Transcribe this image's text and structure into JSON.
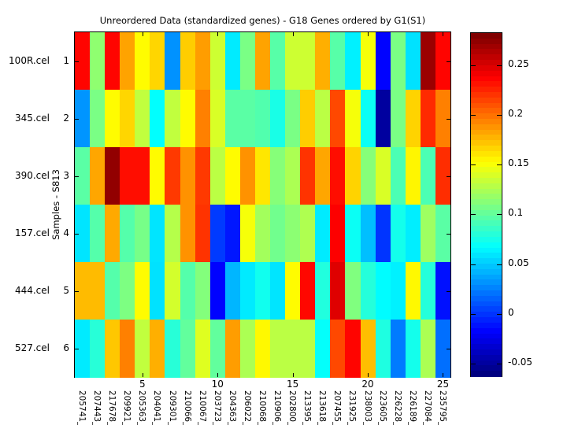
{
  "title": "Unreordered Data (standardized genes) - G18 Genes ordered by G1(S1)",
  "ylabel": "Samples - S813",
  "chart_data": {
    "type": "heatmap",
    "colormap": "jet",
    "row_labels": [
      "100R.cel",
      "345.cel",
      "390.cel",
      "157.cel",
      "444.cel",
      "527.cel"
    ],
    "row_indices": [
      "1",
      "2",
      "3",
      "4",
      "5",
      "6"
    ],
    "col_labels": [
      "205741_",
      "207443_",
      "217678_",
      "209921_",
      "205363_",
      "204041_",
      "209301_",
      "210066_",
      "210067_",
      "203723_",
      "204363_",
      "206022_",
      "210068_",
      "210906_",
      "202800_",
      "213395_",
      "213618_",
      "207455_",
      "231925_",
      "238003_",
      "223605_",
      "226228_",
      "226189_",
      "227084_",
      "235795_"
    ],
    "x_ticks": [
      5,
      10,
      15,
      20,
      25
    ],
    "vmin": -0.0627,
    "vmax": 0.2824,
    "colorbar_ticks": [
      "0.25",
      "0.2",
      "0.15",
      "0.1",
      "0.05",
      "0",
      "-0.05"
    ],
    "values": [
      [
        0.238,
        0.115,
        0.238,
        0.184,
        0.154,
        0.167,
        0.03,
        0.17,
        0.186,
        0.136,
        0.06,
        0.108,
        0.184,
        0.096,
        0.136,
        0.136,
        0.18,
        0.096,
        0.062,
        0.15,
        -0.019,
        0.108,
        0.057,
        0.273,
        0.238
      ],
      [
        0.031,
        0.108,
        0.154,
        0.167,
        0.132,
        0.067,
        0.132,
        0.154,
        0.196,
        0.14,
        0.097,
        0.097,
        0.094,
        0.075,
        0.108,
        0.17,
        0.13,
        0.215,
        0.15,
        0.07,
        -0.052,
        0.108,
        0.168,
        0.225,
        0.196
      ],
      [
        0.097,
        0.183,
        0.276,
        0.235,
        0.235,
        0.154,
        0.22,
        0.19,
        0.22,
        0.13,
        0.154,
        0.19,
        0.161,
        0.112,
        0.125,
        0.222,
        0.183,
        0.235,
        0.168,
        0.112,
        0.14,
        0.092,
        0.156,
        0.092,
        0.224
      ],
      [
        0.058,
        0.095,
        0.182,
        0.095,
        0.107,
        0.058,
        0.128,
        0.19,
        0.222,
        0.0,
        -0.012,
        0.15,
        0.122,
        0.105,
        0.114,
        0.126,
        0.06,
        0.24,
        0.07,
        0.045,
        -0.002,
        0.073,
        0.061,
        0.12,
        0.097
      ],
      [
        0.176,
        0.176,
        0.095,
        0.109,
        0.154,
        0.057,
        0.138,
        0.095,
        0.111,
        -0.019,
        0.042,
        0.06,
        0.072,
        0.058,
        0.154,
        0.237,
        0.078,
        0.25,
        0.11,
        0.079,
        0.066,
        0.062,
        0.155,
        0.079,
        -0.014
      ],
      [
        0.06,
        0.08,
        0.172,
        0.196,
        0.132,
        0.18,
        0.08,
        0.1,
        0.142,
        0.1,
        0.186,
        0.125,
        0.155,
        0.13,
        0.13,
        0.13,
        0.068,
        0.215,
        0.238,
        0.175,
        0.077,
        0.022,
        0.073,
        0.125,
        0.018
      ]
    ]
  }
}
